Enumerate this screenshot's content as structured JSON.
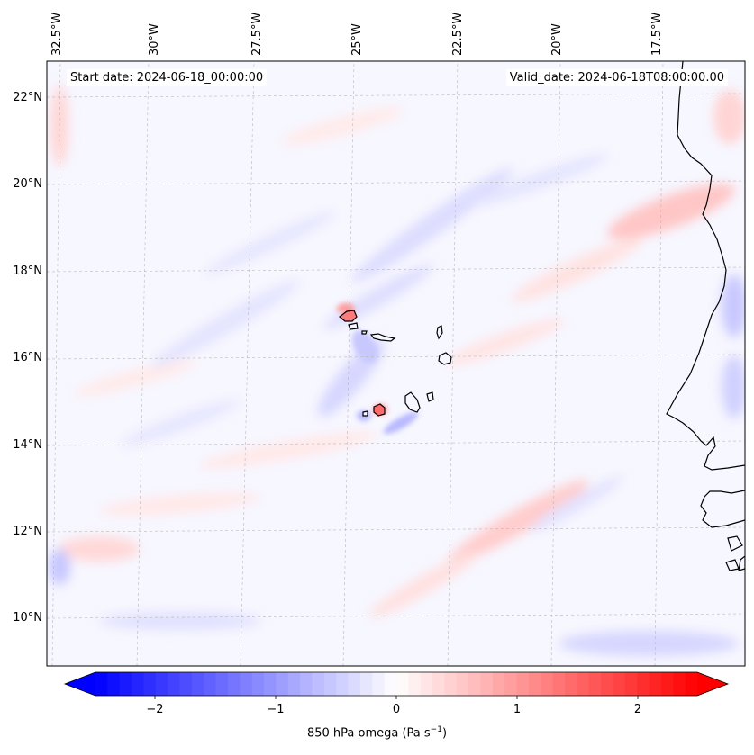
{
  "map": {
    "start_date": "Start date: 2024-06-18_00:00:00",
    "valid_date": "Valid_date: 2024-06-18T08:00:00.00",
    "lon_labels": [
      "32.5°W",
      "30°W",
      "27.5°W",
      "25°W",
      "22.5°W",
      "20°W",
      "17.5°W"
    ],
    "lat_labels": [
      "22°N",
      "20°N",
      "18°N",
      "16°N",
      "14°N",
      "12°N",
      "10°N"
    ],
    "gridlines": true,
    "coastline_color": "#000000"
  },
  "colorbar": {
    "label": "850 hPa omega (Pa s",
    "label_sup": "−1",
    "label_close": ")",
    "ticks": [
      "−2",
      "−1",
      "0",
      "1",
      "2"
    ],
    "range": [
      -2.5,
      2.5
    ],
    "extend": "both",
    "colormap": "bwr",
    "color_min": "#0000ff",
    "color_mid": "#ffffff",
    "color_max": "#ff0000"
  }
}
